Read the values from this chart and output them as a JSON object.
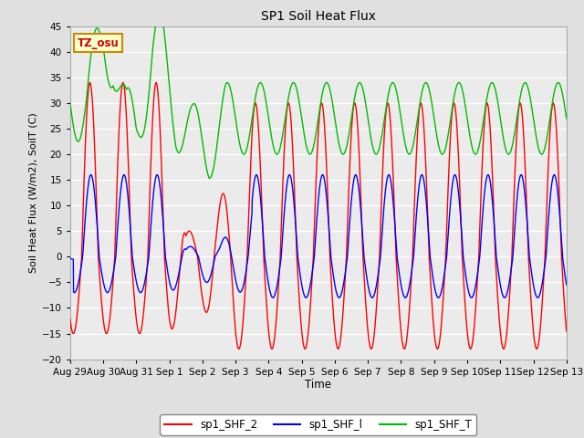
{
  "title": "SP1 Soil Heat Flux",
  "xlabel": "Time",
  "ylabel": "Soil Heat Flux (W/m2), SoilT (C)",
  "ylim": [
    -20,
    45
  ],
  "yticks": [
    -20,
    -15,
    -10,
    -5,
    0,
    5,
    10,
    15,
    20,
    25,
    30,
    35,
    40,
    45
  ],
  "xtick_labels": [
    "Aug 29",
    "Aug 30",
    "Aug 31",
    "Sep 1",
    "Sep 2",
    "Sep 3",
    "Sep 4",
    "Sep 5",
    "Sep 6",
    "Sep 7",
    "Sep 8",
    "Sep 9",
    "Sep 10",
    "Sep 11",
    "Sep 12",
    "Sep 13"
  ],
  "color_shf2": "#ff0000",
  "color_shf1": "#0000ff",
  "color_shft": "#00bb00",
  "legend_labels": [
    "sp1_SHF_2",
    "sp1_SHF_l",
    "sp1_SHF_T"
  ],
  "watermark_text": "TZ_osu",
  "watermark_color": "#cc0000",
  "watermark_bg": "#ffffcc",
  "watermark_border": "#cc8800",
  "background_color": "#e0e0e0",
  "plot_bg_color": "#ebebeb",
  "grid_color": "#ffffff",
  "n_days": 15,
  "samples_per_day": 144
}
